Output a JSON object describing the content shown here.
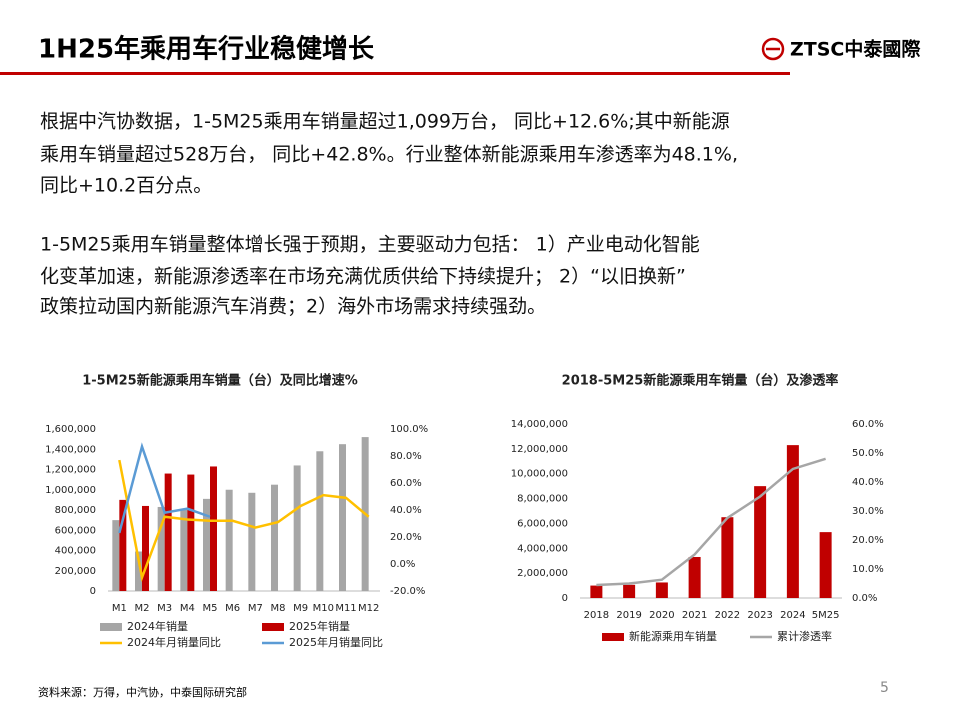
{
  "header": {
    "title": "1H25年乘用车行业稳健增长",
    "logo": "ZTSC中泰國際"
  },
  "paragraphs": [
    [
      "根据中汽协数据，1-5M25乘用车销量超过1,099万台， 同比+12.6%;其中新能源",
      "乘用车销量超过528万台， 同比+42.8%。行业整体新能源乘用车渗透率为48.1%,",
      "同比+10.2百分点。"
    ],
    [
      "1-5M25乘用车销量整体增长强于预期，主要驱动力包括： 1）产业电动化智能",
      "化变革加速，新能源渗透率在市场充满优质供给下持续提升； 2）“以旧换新”",
      "政策拉动国内新能源汽车消费；2）海外市场需求持续强劲。"
    ]
  ],
  "chart_data": [
    {
      "type": "combo",
      "title": "1-5M25新能源乘用车销量（台）及同比增速%",
      "categories": [
        "M1",
        "M2",
        "M3",
        "M4",
        "M5",
        "M6",
        "M7",
        "M8",
        "M9",
        "M10",
        "M11",
        "M12"
      ],
      "series": [
        {
          "name": "2024年销量",
          "type": "bar",
          "color": "#a6a6a6",
          "values": [
            700000,
            390000,
            830000,
            800000,
            910000,
            1000000,
            970000,
            1050000,
            1240000,
            1380000,
            1450000,
            1520000
          ]
        },
        {
          "name": "2025年销量",
          "type": "bar",
          "color": "#c00000",
          "values": [
            900000,
            840000,
            1160000,
            1150000,
            1230000,
            null,
            null,
            null,
            null,
            null,
            null,
            null
          ]
        },
        {
          "name": "2024年月销量同比",
          "type": "line",
          "axis": "y2",
          "color": "#ffc000",
          "values": [
            77,
            -10,
            35,
            33,
            32,
            32,
            27,
            31,
            43,
            51,
            49,
            35
          ]
        },
        {
          "name": "2025年月销量同比",
          "type": "line",
          "axis": "y2",
          "color": "#5b9bd5",
          "values": [
            23,
            87,
            38,
            41,
            35,
            null,
            null,
            null,
            null,
            null,
            null,
            null
          ]
        }
      ],
      "ylim": [
        0,
        1600000
      ],
      "yticks": [
        0,
        {
          "value": 200000,
          "label": "200,000"
        },
        {
          "value": 400000,
          "label": "400,000"
        },
        {
          "value": 600000,
          "label": "600,000"
        },
        {
          "value": 800000,
          "label": "800,000"
        },
        {
          "value": 1000000,
          "label": "1,000,000"
        },
        {
          "value": 1200000,
          "label": "1,200,000"
        },
        {
          "value": 1400000,
          "label": "1,400,000"
        },
        {
          "value": 1600000,
          "label": "1,600,000"
        }
      ],
      "y2lim": [
        -20,
        100
      ],
      "y2ticks": [
        {
          "value": -20,
          "label": "-20.0%"
        },
        {
          "value": 0,
          "label": "0.0%"
        },
        {
          "value": 20,
          "label": "20.0%"
        },
        {
          "value": 40,
          "label": "40.0%"
        },
        {
          "value": 60,
          "label": "60.0%"
        },
        {
          "value": 80,
          "label": "80.0%"
        },
        {
          "value": 100,
          "label": "100.0%"
        }
      ]
    },
    {
      "type": "combo",
      "title": "2018-5M25新能源乘用车销量（台）及渗透率",
      "categories": [
        "2018",
        "2019",
        "2020",
        "2021",
        "2022",
        "2023",
        "2024",
        "5M25"
      ],
      "series": [
        {
          "name": "新能源乘用车销量",
          "type": "bar",
          "color": "#c00000",
          "values": [
            1000000,
            1060000,
            1250000,
            3300000,
            6500000,
            9000000,
            12300000,
            5300000
          ]
        },
        {
          "name": "累计渗透率",
          "type": "line",
          "axis": "y2",
          "color": "#a6a6a6",
          "values": [
            4.5,
            5,
            6.3,
            15,
            27.6,
            35,
            44.5,
            48
          ]
        }
      ],
      "ylim": [
        0,
        14000000
      ],
      "yticks": [
        0,
        {
          "value": 2000000,
          "label": "2,000,000"
        },
        {
          "value": 4000000,
          "label": "4,000,000"
        },
        {
          "value": 6000000,
          "label": "6,000,000"
        },
        {
          "value": 8000000,
          "label": "8,000,000"
        },
        {
          "value": 10000000,
          "label": "10,000,000"
        },
        {
          "value": 12000000,
          "label": "12,000,000"
        },
        {
          "value": 14000000,
          "label": "14,000,000"
        }
      ],
      "y2lim": [
        0,
        60
      ],
      "y2ticks": [
        {
          "value": 0,
          "label": "0.0%"
        },
        {
          "value": 10,
          "label": "10.0%"
        },
        {
          "value": 20,
          "label": "20.0%"
        },
        {
          "value": 30,
          "label": "30.0%"
        },
        {
          "value": 40,
          "label": "40.0%"
        },
        {
          "value": 50,
          "label": "50.0%"
        },
        {
          "value": 60,
          "label": "60.0%"
        }
      ]
    }
  ],
  "footer": {
    "source": "资料来源：万得，中汽协，中泰国际研究部",
    "page": "5"
  }
}
